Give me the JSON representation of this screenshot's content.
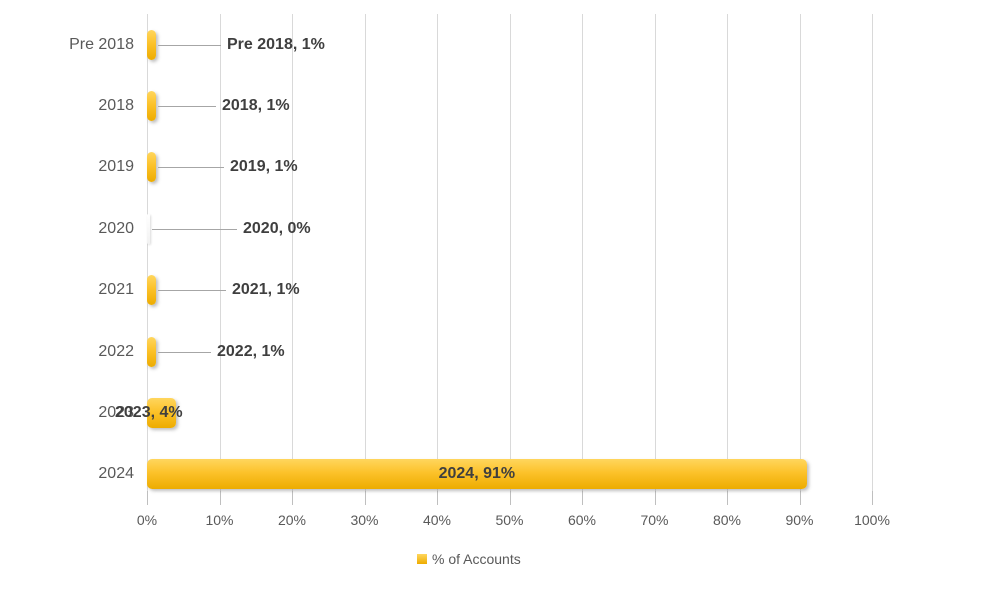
{
  "chart_data": {
    "type": "bar",
    "orientation": "horizontal",
    "title": "",
    "categories": [
      "Pre 2018",
      "2018",
      "2019",
      "2020",
      "2021",
      "2022",
      "2023",
      "2024"
    ],
    "series": [
      {
        "name": "% of Accounts",
        "values": [
          1,
          1,
          1,
          0,
          1,
          1,
          4,
          91
        ]
      }
    ],
    "data_labels": [
      "Pre 2018, 1%",
      "2018, 1%",
      "2019, 1%",
      "2020, 0%",
      "2021, 1%",
      "2022, 1%",
      "2023, 4%",
      "2024, 91%"
    ],
    "xlim": [
      0,
      100
    ],
    "x_tick_labels": [
      "0%",
      "10%",
      "20%",
      "30%",
      "40%",
      "50%",
      "60%",
      "70%",
      "80%",
      "90%",
      "100%"
    ],
    "grid": "vertical-major",
    "legend_position": "bottom-center",
    "colors": {
      "bar": "#FCC22A",
      "bar_gradient_top": "#FFD65E",
      "bar_gradient_bottom": "#EDAC00",
      "gridline": "#D9D9D9",
      "axis_tick": "#BFBFBF",
      "leader_line": "#A6A6A6",
      "axis_text": "#595959",
      "data_label_text": "#3F3F3F"
    }
  },
  "legend": {
    "label": "% of Accounts"
  }
}
